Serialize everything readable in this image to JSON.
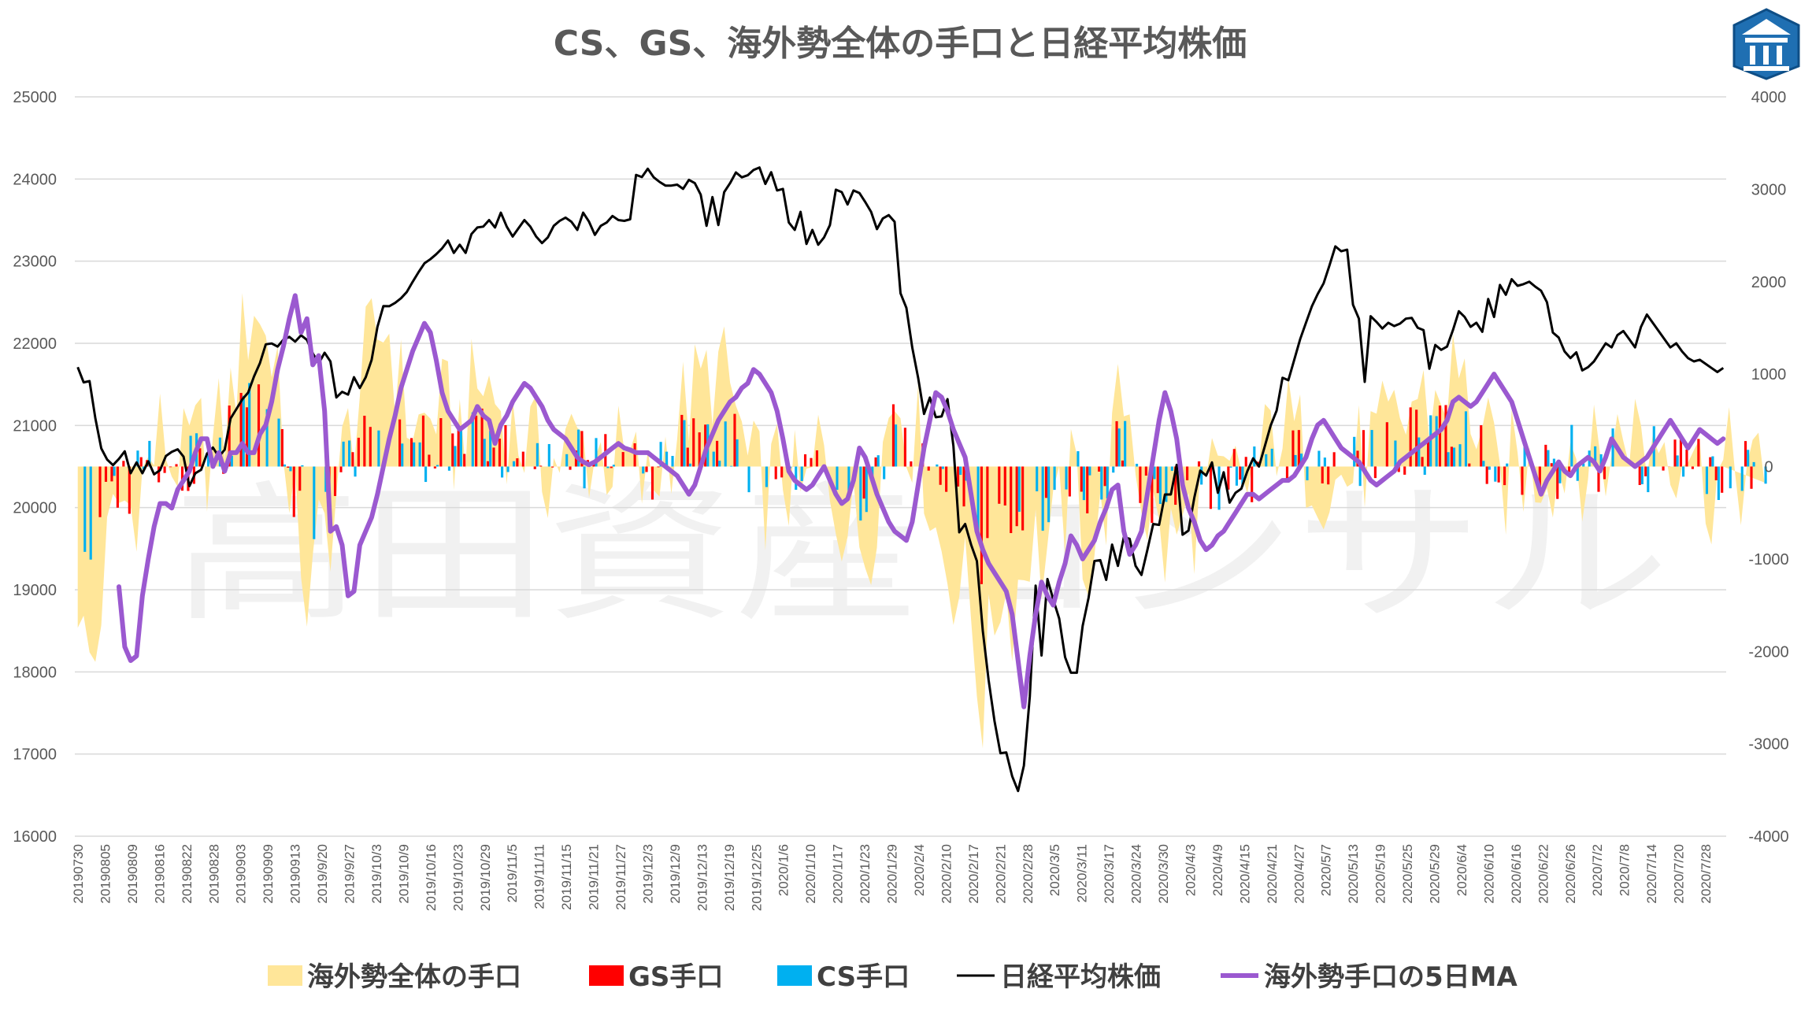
{
  "chart_data": {
    "type": "bar",
    "title": "CS、GS、海外勢全体の手口と日経平均株価",
    "watermark": "高田資産コンサル",
    "logo_icon": "pillar-logo-icon",
    "y_left": {
      "min": 16000,
      "max": 25000,
      "ticks": [
        "25000",
        "24000",
        "23000",
        "22000",
        "21000",
        "20000",
        "19000",
        "18000",
        "17000",
        "16000"
      ]
    },
    "y_right": {
      "min": -4000,
      "max": 4000,
      "ticks": [
        "4000",
        "3000",
        "2000",
        "1000",
        "0",
        "-1000",
        "-2000",
        "-3000",
        "-4000"
      ]
    },
    "x_ticks": [
      "20190730",
      "20190805",
      "20190809",
      "20190816",
      "20190822",
      "20190828",
      "20190903",
      "20190909",
      "20190913",
      "2019/9/20",
      "2019/9/27",
      "2019/10/3",
      "2019/10/9",
      "2019/10/16",
      "2019/10/23",
      "2019/10/29",
      "2019/11/5",
      "2019/11/11",
      "2019/11/15",
      "2019/11/21",
      "2019/11/27",
      "2019/12/3",
      "2019/12/9",
      "2019/12/13",
      "2019/12/19",
      "2019/12/25",
      "2020/1/6",
      "2020/1/10",
      "2020/1/17",
      "2020/1/23",
      "2020/1/29",
      "2020/2/4",
      "2020/2/10",
      "2020/2/17",
      "2020/2/21",
      "2020/2/28",
      "2020/3/5",
      "2020/3/11",
      "2020/3/17",
      "2020/3/24",
      "2020/3/30",
      "2020/4/3",
      "2020/4/9",
      "2020/4/15",
      "2020/4/21",
      "2020/4/27",
      "2020/5/7",
      "2020/5/13",
      "2020/5/19",
      "2020/5/25",
      "2020/5/29",
      "2020/6/4",
      "2020/6/10",
      "2020/6/16",
      "2020/6/22",
      "2020/6/26",
      "2020/7/2",
      "2020/7/8",
      "2020/7/14",
      "2020/7/20",
      "2020/7/28"
    ],
    "legend": [
      "海外勢全体の手口",
      "GS手口",
      "CS手口",
      "日経平均株価",
      "海外勢手口の5日MA"
    ],
    "colors": {
      "foreign_total": "#FFE699",
      "gs": "#FF0000",
      "cs": "#00B0F0",
      "nikkei": "#000000",
      "ma5": "#9B59D0",
      "grid": "#D9D9D9"
    },
    "nikkei": [
      21710,
      21525,
      21540,
      21087,
      20720,
      20585,
      20517,
      20593,
      20685,
      20419,
      20550,
      20418,
      20563,
      20405,
      20455,
      20628,
      20678,
      20710,
      20620,
      20261,
      20418,
      20460,
      20657,
      20731,
      20620,
      20704,
      21085,
      21200,
      21318,
      21400,
      21597,
      21759,
      21988,
      21998,
      21960,
      22044,
      22079,
      22020,
      22098,
      22041,
      21878,
      21756,
      21885,
      21779,
      21341,
      21410,
      21375,
      21587,
      21456,
      21587,
      21798,
      22200,
      22452,
      22451,
      22492,
      22548,
      22625,
      22750,
      22867,
      22974,
      23024,
      23085,
      23156,
      23251,
      23100,
      23200,
      23100,
      23330,
      23410,
      23420,
      23500,
      23410,
      23590,
      23420,
      23300,
      23400,
      23500,
      23420,
      23300,
      23220,
      23290,
      23430,
      23490,
      23530,
      23480,
      23380,
      23590,
      23480,
      23320,
      23430,
      23470,
      23550,
      23500,
      23490,
      23510,
      24050,
      24023,
      24125,
      24020,
      23965,
      23920,
      23920,
      23931,
      23880,
      23990,
      23950,
      23810,
      23430,
      23780,
      23440,
      23840,
      23950,
      24080,
      24020,
      24045,
      24110,
      24140,
      23940,
      24083,
      23860,
      23880,
      23470,
      23380,
      23600,
      23210,
      23380,
      23200,
      23290,
      23440,
      23870,
      23840,
      23690,
      23860,
      23830,
      23720,
      23600,
      23390,
      23520,
      23560,
      23480,
      22610,
      22430,
      21950,
      21580,
      21140,
      21340,
      21100,
      21110,
      21320,
      20750,
      19700,
      19800,
      19550,
      19350,
      18500,
      17900,
      17400,
      17010,
      17020,
      16730,
      16550,
      16860,
      17700,
      19050,
      18200,
      19130,
      18880,
      18650,
      18180,
      17990,
      17990,
      18560,
      18900,
      19350,
      19360,
      19120,
      19550,
      19290,
      19640,
      19620,
      19290,
      19180,
      19480,
      19800,
      19790,
      20160,
      20160,
      20520,
      19670,
      19720,
      20120,
      20450,
      20390,
      20550,
      20180,
      20430,
      20060,
      20180,
      20230,
      20440,
      20600,
      20500,
      20750,
      21000,
      21180,
      21580,
      21550,
      21800,
      22050,
      22250,
      22450,
      22600,
      22730,
      22950,
      23180,
      23120,
      23140,
      22470,
      22300,
      21530,
      22330,
      22260,
      22180,
      22250,
      22210,
      22240,
      22300,
      22310,
      22190,
      22160,
      21690,
      21980,
      21920,
      21960,
      22160,
      22390,
      22320,
      22200,
      22250,
      22140,
      22540,
      22320,
      22710,
      22590,
      22780,
      22700,
      22720,
      22750,
      22690,
      22640,
      22500,
      22130,
      22070,
      21900,
      21820,
      21890,
      21670,
      21710,
      21780,
      21890,
      22000,
      21950,
      22100,
      22150,
      22050,
      21950,
      22200,
      22350,
      22250,
      22150,
      22050,
      21950,
      22000,
      21900,
      21820,
      21780,
      21800,
      21750,
      21700,
      21650,
      21700
    ],
    "ma5": [
      -1300,
      -1950,
      -2100,
      -2050,
      -1400,
      -1000,
      -650,
      -400,
      -400,
      -450,
      -250,
      -150,
      -50,
      150,
      300,
      300,
      0,
      150,
      -50,
      150,
      150,
      250,
      150,
      150,
      350,
      450,
      700,
      1050,
      1300,
      1600,
      1850,
      1450,
      1600,
      1100,
      1200,
      600,
      -700,
      -650,
      -850,
      -1400,
      -1350,
      -850,
      -700,
      -550,
      -300,
      0,
      300,
      550,
      850,
      1050,
      1250,
      1400,
      1550,
      1450,
      1150,
      800,
      600,
      500,
      400,
      450,
      500,
      650,
      550,
      500,
      250,
      450,
      550,
      700,
      800,
      900,
      850,
      750,
      650,
      500,
      400,
      350,
      300,
      200,
      100,
      50,
      20,
      50,
      100,
      150,
      200,
      250,
      200,
      180,
      150,
      150,
      150,
      100,
      50,
      0,
      -50,
      -100,
      -200,
      -300,
      -200,
      0,
      200,
      350,
      500,
      600,
      700,
      750,
      850,
      900,
      1050,
      1000,
      900,
      800,
      600,
      300,
      -50,
      -150,
      -200,
      -250,
      -200,
      -100,
      0,
      -150,
      -300,
      -400,
      -350,
      -150,
      200,
      100,
      -100,
      -300,
      -450,
      -600,
      -700,
      -750,
      -800,
      -600,
      -200,
      200,
      500,
      800,
      750,
      600,
      400,
      250,
      100,
      -300,
      -700,
      -900,
      -1050,
      -1150,
      -1250,
      -1350,
      -1600,
      -2100,
      -2600,
      -2050,
      -1600,
      -1250,
      -1400,
      -1500,
      -1250,
      -1050,
      -750,
      -850,
      -1000,
      -900,
      -800,
      -600,
      -450,
      -250,
      -200,
      -700,
      -950,
      -850,
      -700,
      -300,
      100,
      500,
      800,
      600,
      300,
      -200,
      -450,
      -600,
      -800,
      -900,
      -850,
      -750,
      -700,
      -600,
      -500,
      -400,
      -300,
      -300,
      -350,
      -300,
      -250,
      -200,
      -150,
      -150,
      -100,
      0,
      100,
      300,
      450,
      500,
      400,
      300,
      200,
      150,
      100,
      50,
      -50,
      -150,
      -200,
      -150,
      -100,
      -50,
      50,
      100,
      150,
      200,
      250,
      300,
      350,
      400,
      500,
      700,
      750,
      700,
      650,
      700,
      800,
      900,
      1000,
      900,
      800,
      700,
      500,
      300,
      100,
      -100,
      -300,
      -150,
      -50,
      50,
      -50,
      -100,
      0,
      50,
      100,
      50,
      -50,
      100,
      300,
      200,
      100,
      50,
      0,
      50,
      100,
      200,
      300,
      400,
      500,
      400,
      300,
      200,
      300,
      400,
      350,
      300,
      250,
      300,
      350,
      200,
      -100,
      -150,
      -200,
      -150,
      -100,
      -50,
      0,
      -50,
      -100,
      -150,
      -200,
      -300
    ]
  }
}
